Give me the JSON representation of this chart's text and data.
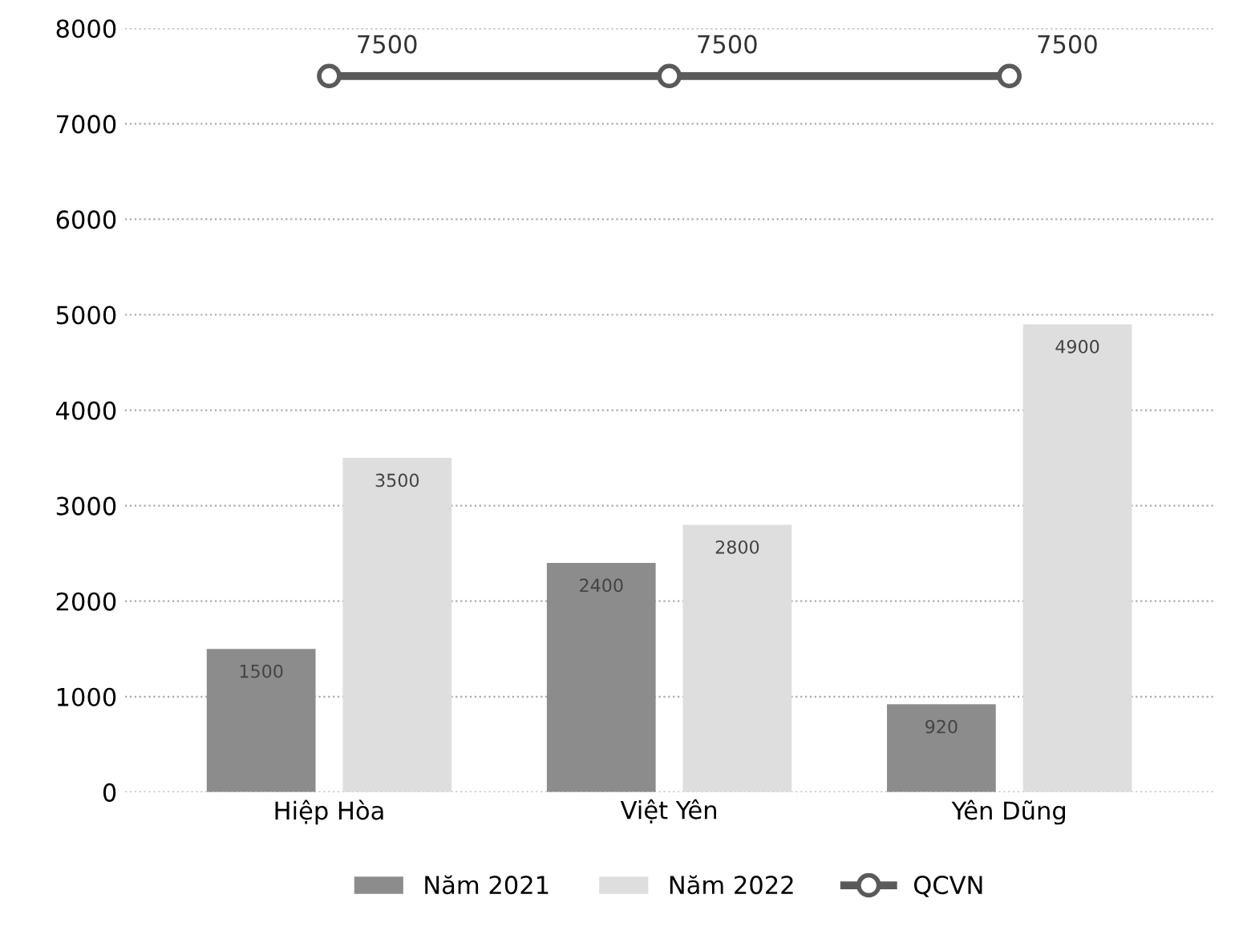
{
  "chart_data": {
    "type": "bar",
    "categories": [
      "Hiệp Hòa",
      "Việt Yên",
      "Yên Dũng"
    ],
    "series": [
      {
        "name": "Năm 2021",
        "color": "#8c8c8c",
        "values": [
          1500,
          2400,
          920
        ]
      },
      {
        "name": "Năm 2022",
        "color": "#dedede",
        "values": [
          3500,
          2800,
          4900
        ]
      },
      {
        "name": "QCVN",
        "type": "line",
        "color": "#5a5a5a",
        "marker": "circle",
        "values": [
          7500,
          7500,
          7500
        ]
      }
    ],
    "ylim": [
      0,
      8000
    ],
    "yticks": [
      0,
      1000,
      2000,
      3000,
      4000,
      5000,
      6000,
      7000,
      8000
    ],
    "grid": "y",
    "legend": "bottom",
    "data_labels": true
  }
}
